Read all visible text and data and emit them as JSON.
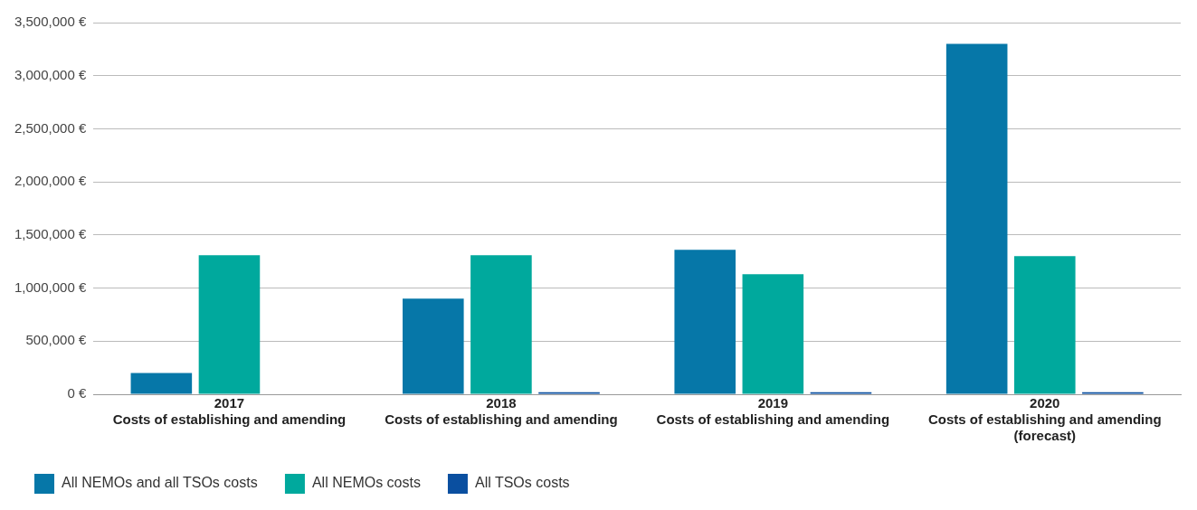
{
  "chart_data": {
    "type": "bar",
    "categories": [
      "2017\nCosts of establishing and amending",
      "2018\nCosts of establishing and amending",
      "2019\nCosts of establishing and amending",
      "2020\nCosts of establishing and amending\n(forecast)"
    ],
    "series": [
      {
        "name": "All NEMOs and all TSOs costs",
        "color": "#0677a8",
        "values": [
          200000,
          900000,
          1360000,
          3300000
        ]
      },
      {
        "name": "All NEMOs costs",
        "color": "#00a99d",
        "values": [
          1310000,
          1310000,
          1130000,
          1300000
        ]
      },
      {
        "name": "All TSOs costs",
        "color": "#0a4fa0",
        "values": [
          0,
          20000,
          20000,
          20000
        ]
      }
    ],
    "ylim": [
      0,
      3500000
    ],
    "yticks": [
      {
        "value": 0,
        "label": "0 €"
      },
      {
        "value": 500000,
        "label": "500,000 €"
      },
      {
        "value": 1000000,
        "label": "1,000,000 €"
      },
      {
        "value": 1500000,
        "label": "1,500,000 €"
      },
      {
        "value": 2000000,
        "label": "2,000,000 €"
      },
      {
        "value": 2500000,
        "label": "2,500,000 €"
      },
      {
        "value": 3000000,
        "label": "3,000,000 €"
      },
      {
        "value": 3500000,
        "label": "3,500,000 €"
      }
    ],
    "grid": "y",
    "legend": "bottom left"
  }
}
